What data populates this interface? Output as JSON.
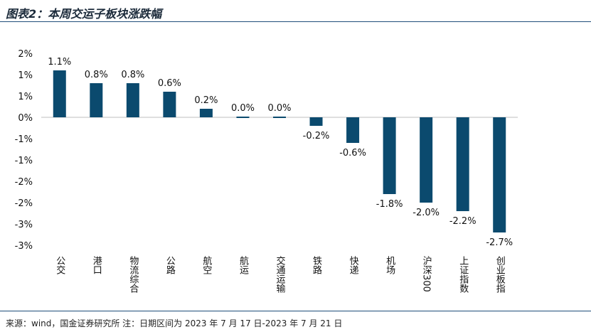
{
  "header": {
    "title": "图表2：本周交运子板块涨跌幅"
  },
  "footer": {
    "source": "来源：wind，国金证券研究所   注：日期区间为 2023 年 7 月 17 日-2023 年 7 月 21 日"
  },
  "colors": {
    "bar": "#0b4a6e",
    "rule": "#1f4e79",
    "axis": "#bfbfbf"
  },
  "chart_data": {
    "type": "bar",
    "title": "本周交运子板块涨跌幅",
    "categories": [
      "公交",
      "港口",
      "物流综合",
      "公路",
      "航空",
      "航运",
      "交通运输",
      "铁路",
      "快递",
      "机场",
      "沪深300",
      "上证指数",
      "创业板指"
    ],
    "values": [
      1.1,
      0.8,
      0.8,
      0.6,
      0.2,
      0.0,
      0.0,
      -0.2,
      -0.6,
      -1.8,
      -2.0,
      -2.2,
      -2.7
    ],
    "data_labels": [
      "1.1%",
      "0.8%",
      "0.8%",
      "0.6%",
      "0.2%",
      "0.0%",
      "0.0%",
      "-0.2%",
      "-0.6%",
      "-1.8%",
      "-2.0%",
      "-2.2%",
      "-2.7%"
    ],
    "y_tick_labels": [
      "2%",
      "1%",
      "1%",
      "0%",
      "-1%",
      "-1%",
      "-2%",
      "-2%",
      "-3%",
      "-3%"
    ],
    "ylim": [
      -3.0,
      1.5
    ],
    "xlabel": "",
    "ylabel": "",
    "grid": false,
    "legend": "none"
  }
}
